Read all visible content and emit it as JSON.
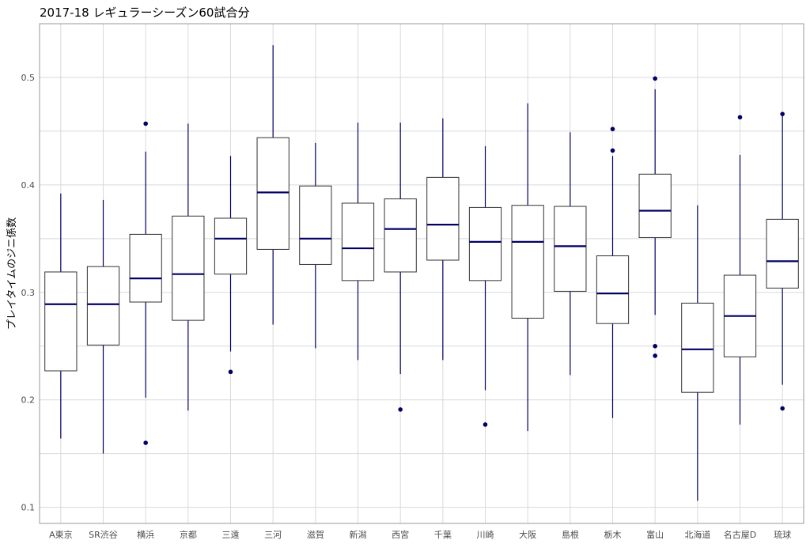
{
  "chart_data": {
    "type": "box",
    "title": "2017-18 レギュラーシーズン60試合分",
    "xlabel": "",
    "ylabel": "プレイタイムのジニ係数",
    "ylim": [
      0.085,
      0.55
    ],
    "y_ticks": [
      "0.1",
      "0.2",
      "0.3",
      "0.4",
      "0.5"
    ],
    "grid": true,
    "colors": {
      "box_stroke": "#333333",
      "median": "#000066",
      "whisker": "#000066",
      "outlier": "#000066",
      "grid": "#d9d9d9",
      "panel_border": "#999999"
    },
    "categories": [
      "A東京",
      "SR渋谷",
      "横浜",
      "京都",
      "三遠",
      "三河",
      "滋賀",
      "新潟",
      "西宮",
      "千葉",
      "川崎",
      "大阪",
      "島根",
      "栃木",
      "富山",
      "北海道",
      "名古屋D",
      "琉球"
    ],
    "series": [
      {
        "category": "A東京",
        "min": 0.164,
        "q1": 0.227,
        "median": 0.289,
        "q3": 0.319,
        "max": 0.392,
        "outliers": []
      },
      {
        "category": "SR渋谷",
        "min": 0.15,
        "q1": 0.251,
        "median": 0.289,
        "q3": 0.324,
        "max": 0.386,
        "outliers": []
      },
      {
        "category": "横浜",
        "min": 0.202,
        "q1": 0.291,
        "median": 0.313,
        "q3": 0.354,
        "max": 0.431,
        "outliers": [
          0.457,
          0.16
        ]
      },
      {
        "category": "京都",
        "min": 0.19,
        "q1": 0.274,
        "median": 0.317,
        "q3": 0.371,
        "max": 0.457,
        "outliers": []
      },
      {
        "category": "三遠",
        "min": 0.245,
        "q1": 0.317,
        "median": 0.35,
        "q3": 0.369,
        "max": 0.427,
        "outliers": [
          0.226
        ]
      },
      {
        "category": "三河",
        "min": 0.27,
        "q1": 0.34,
        "median": 0.393,
        "q3": 0.444,
        "max": 0.53,
        "outliers": []
      },
      {
        "category": "滋賀",
        "min": 0.248,
        "q1": 0.326,
        "median": 0.35,
        "q3": 0.399,
        "max": 0.439,
        "outliers": []
      },
      {
        "category": "新潟",
        "min": 0.237,
        "q1": 0.311,
        "median": 0.341,
        "q3": 0.383,
        "max": 0.458,
        "outliers": []
      },
      {
        "category": "西宮",
        "min": 0.224,
        "q1": 0.319,
        "median": 0.359,
        "q3": 0.387,
        "max": 0.458,
        "outliers": [
          0.191
        ]
      },
      {
        "category": "千葉",
        "min": 0.237,
        "q1": 0.33,
        "median": 0.363,
        "q3": 0.407,
        "max": 0.462,
        "outliers": []
      },
      {
        "category": "川崎",
        "min": 0.209,
        "q1": 0.311,
        "median": 0.347,
        "q3": 0.379,
        "max": 0.436,
        "outliers": [
          0.177
        ]
      },
      {
        "category": "大阪",
        "min": 0.171,
        "q1": 0.276,
        "median": 0.347,
        "q3": 0.381,
        "max": 0.476,
        "outliers": []
      },
      {
        "category": "島根",
        "min": 0.223,
        "q1": 0.301,
        "median": 0.343,
        "q3": 0.38,
        "max": 0.449,
        "outliers": []
      },
      {
        "category": "栃木",
        "min": 0.183,
        "q1": 0.271,
        "median": 0.299,
        "q3": 0.334,
        "max": 0.427,
        "outliers": [
          0.452,
          0.432
        ]
      },
      {
        "category": "富山",
        "min": 0.279,
        "q1": 0.351,
        "median": 0.376,
        "q3": 0.41,
        "max": 0.489,
        "outliers": [
          0.499,
          0.25,
          0.241
        ]
      },
      {
        "category": "北海道",
        "min": 0.106,
        "q1": 0.207,
        "median": 0.247,
        "q3": 0.29,
        "max": 0.381,
        "outliers": []
      },
      {
        "category": "名古屋D",
        "min": 0.177,
        "q1": 0.24,
        "median": 0.278,
        "q3": 0.316,
        "max": 0.428,
        "outliers": [
          0.463
        ]
      },
      {
        "category": "琉球",
        "min": 0.214,
        "q1": 0.304,
        "median": 0.329,
        "q3": 0.368,
        "max": 0.464,
        "outliers": [
          0.466,
          0.192
        ]
      }
    ]
  }
}
